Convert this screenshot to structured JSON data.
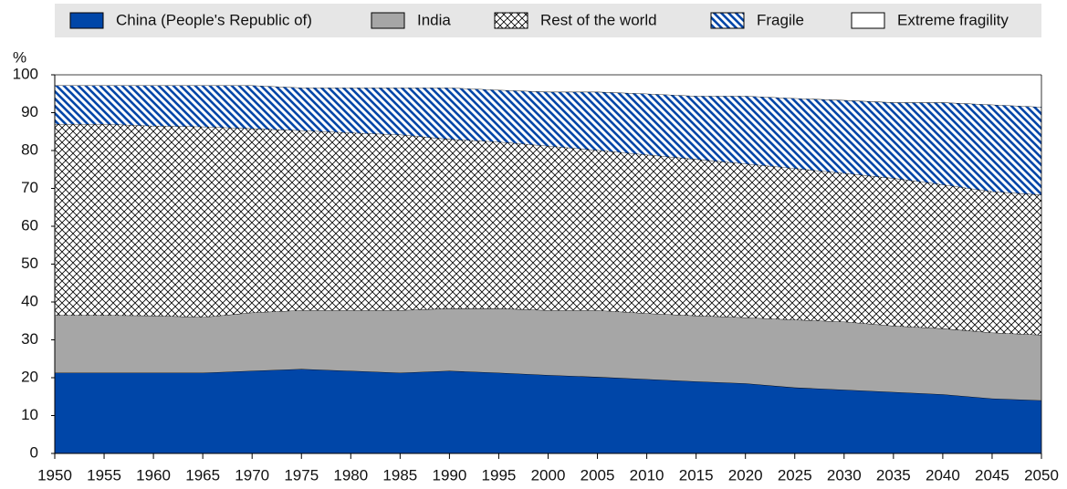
{
  "chart_data": {
    "type": "stacked_area",
    "y_label": "%",
    "x": [
      1950,
      1955,
      1960,
      1965,
      1970,
      1975,
      1980,
      1985,
      1990,
      1995,
      2000,
      2005,
      2010,
      2015,
      2020,
      2025,
      2030,
      2035,
      2040,
      2045,
      2050
    ],
    "xlim": [
      1950,
      2050
    ],
    "xticks": [
      1950,
      1955,
      1960,
      1965,
      1970,
      1975,
      1980,
      1985,
      1990,
      1995,
      2000,
      2005,
      2010,
      2015,
      2020,
      2025,
      2030,
      2035,
      2040,
      2045,
      2050
    ],
    "ylim": [
      0,
      100
    ],
    "yticks": [
      0,
      10,
      20,
      30,
      40,
      50,
      60,
      70,
      80,
      90,
      100
    ],
    "grid": false,
    "legend": "top",
    "series": [
      {
        "name": "China (People's Republic of)",
        "color": "#0046a8",
        "hatch": null,
        "values": [
          21.3,
          21.3,
          21.3,
          21.3,
          21.8,
          22.3,
          21.8,
          21.3,
          21.8,
          21.3,
          20.7,
          20.2,
          19.6,
          19.0,
          18.5,
          17.4,
          16.8,
          16.2,
          15.6,
          14.5,
          14.0
        ]
      },
      {
        "name": "India",
        "color": "#a6a6a6",
        "hatch": null,
        "values": [
          15.2,
          15.2,
          15.1,
          14.7,
          15.4,
          15.5,
          16.0,
          16.5,
          16.5,
          17.0,
          17.1,
          17.6,
          17.4,
          17.4,
          17.4,
          17.9,
          18.0,
          17.5,
          17.4,
          17.4,
          17.3
        ]
      },
      {
        "name": "Rest of the world",
        "color": "#000000",
        "hatch": "cross",
        "values": [
          50.5,
          50.5,
          50.1,
          50.3,
          48.6,
          47.5,
          46.9,
          46.4,
          44.7,
          44.0,
          43.4,
          42.3,
          41.9,
          41.3,
          40.6,
          40.0,
          39.2,
          39.0,
          38.0,
          37.3,
          37.0
        ]
      },
      {
        "name": "Fragile",
        "color": "#0046a8",
        "hatch": "diagonal",
        "values": [
          10.2,
          10.2,
          10.7,
          10.9,
          11.4,
          11.3,
          11.9,
          12.4,
          13.6,
          13.7,
          14.3,
          15.4,
          16.1,
          16.7,
          17.9,
          18.5,
          19.3,
          20.0,
          21.7,
          22.9,
          23.2
        ]
      },
      {
        "name": "Extreme fragility",
        "color": "#ffffff",
        "hatch": null,
        "values": [
          2.8,
          2.8,
          2.8,
          2.8,
          2.8,
          3.4,
          3.4,
          3.4,
          3.4,
          4.0,
          4.5,
          4.5,
          5.0,
          5.6,
          5.6,
          6.2,
          6.7,
          7.3,
          7.3,
          7.9,
          8.5
        ]
      }
    ]
  }
}
